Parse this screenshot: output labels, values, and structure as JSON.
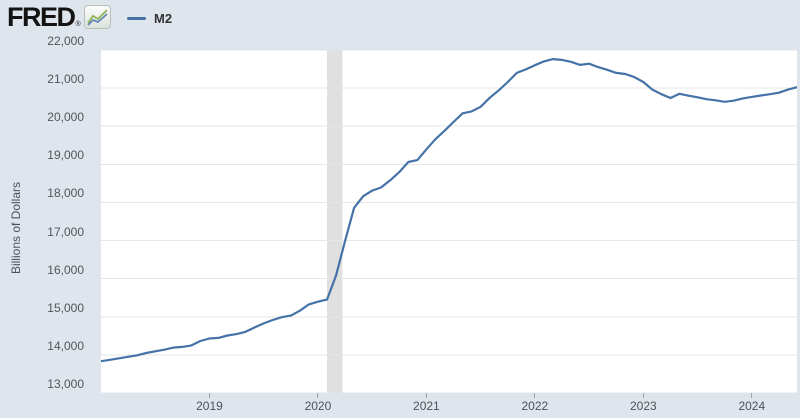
{
  "header": {
    "logo_text": "FRED",
    "logo_registered": "®",
    "legend": {
      "series_label": "M2",
      "swatch_color": "#4572a7"
    }
  },
  "y_axis": {
    "title": "Billions of Dollars",
    "ticks": [
      {
        "label": "22,000",
        "value": 22000
      },
      {
        "label": "21,000",
        "value": 21000
      },
      {
        "label": "20,000",
        "value": 20000
      },
      {
        "label": "19,000",
        "value": 19000
      },
      {
        "label": "18,000",
        "value": 18000
      },
      {
        "label": "17,000",
        "value": 17000
      },
      {
        "label": "16,000",
        "value": 16000
      },
      {
        "label": "15,000",
        "value": 15000
      },
      {
        "label": "14,000",
        "value": 14000
      },
      {
        "label": "13,000",
        "value": 13000
      }
    ]
  },
  "x_axis": {
    "ticks": [
      {
        "label": "2019",
        "month_index": 12
      },
      {
        "label": "2020",
        "month_index": 24
      },
      {
        "label": "2021",
        "month_index": 36
      },
      {
        "label": "2022",
        "month_index": 48
      },
      {
        "label": "2023",
        "month_index": 60
      },
      {
        "label": "2024",
        "month_index": 72
      }
    ]
  },
  "chart_data": {
    "type": "line",
    "ylabel": "Billions of Dollars",
    "ylim": [
      13000,
      22000
    ],
    "grid_step": 1000,
    "grid": "horizontal",
    "legend_position": "top-left",
    "x_range": [
      "2018-01",
      "2024-06"
    ],
    "colors": {
      "line": "#4572a7",
      "gridline": "#e6e6e6",
      "plot_background": "#ffffff",
      "page_background": "#dee5ec",
      "recession_band": "#e0e0e0"
    },
    "recession_band": {
      "start_date": "2020-02",
      "end_date": "2020-04",
      "start_index": 25,
      "end_index": 26.7,
      "color": "#e0e0e0"
    },
    "series": [
      {
        "name": "M2",
        "color": "#4572a7",
        "dates": [
          "2018-01",
          "2018-02",
          "2018-03",
          "2018-04",
          "2018-05",
          "2018-06",
          "2018-07",
          "2018-08",
          "2018-09",
          "2018-10",
          "2018-11",
          "2018-12",
          "2019-01",
          "2019-02",
          "2019-03",
          "2019-04",
          "2019-05",
          "2019-06",
          "2019-07",
          "2019-08",
          "2019-09",
          "2019-10",
          "2019-11",
          "2019-12",
          "2020-01",
          "2020-02",
          "2020-03",
          "2020-04",
          "2020-05",
          "2020-06",
          "2020-07",
          "2020-08",
          "2020-09",
          "2020-10",
          "2020-11",
          "2020-12",
          "2021-01",
          "2021-02",
          "2021-03",
          "2021-04",
          "2021-05",
          "2021-06",
          "2021-07",
          "2021-08",
          "2021-09",
          "2021-10",
          "2021-11",
          "2021-12",
          "2022-01",
          "2022-02",
          "2022-03",
          "2022-04",
          "2022-05",
          "2022-06",
          "2022-07",
          "2022-08",
          "2022-09",
          "2022-10",
          "2022-11",
          "2022-12",
          "2023-01",
          "2023-02",
          "2023-03",
          "2023-04",
          "2023-05",
          "2023-06",
          "2023-07",
          "2023-08",
          "2023-09",
          "2023-10",
          "2023-11",
          "2023-12",
          "2024-01",
          "2024-02",
          "2024-03",
          "2024-04",
          "2024-05",
          "2024-06"
        ],
        "values": [
          13835,
          13870,
          13910,
          13950,
          13990,
          14050,
          14095,
          14135,
          14190,
          14210,
          14250,
          14365,
          14430,
          14445,
          14510,
          14545,
          14605,
          14720,
          14825,
          14915,
          14990,
          15030,
          15160,
          15325,
          15395,
          15450,
          16080,
          16990,
          17860,
          18160,
          18310,
          18395,
          18580,
          18795,
          19060,
          19110,
          19395,
          19660,
          19880,
          20110,
          20340,
          20390,
          20510,
          20745,
          20940,
          21160,
          21400,
          21490,
          21600,
          21700,
          21760,
          21740,
          21690,
          21610,
          21640,
          21550,
          21480,
          21400,
          21370,
          21290,
          21160,
          20960,
          20840,
          20740,
          20850,
          20800,
          20760,
          20710,
          20680,
          20640,
          20670,
          20730,
          20770,
          20805,
          20840,
          20880,
          20960,
          21025
        ]
      }
    ]
  }
}
